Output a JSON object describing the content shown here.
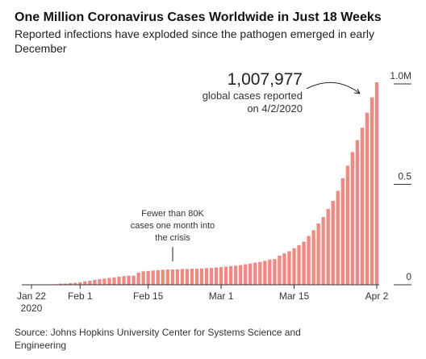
{
  "chart_data": {
    "type": "bar",
    "title": "One Million Coronavirus Cases Worldwide in Just 18 Weeks",
    "subtitle": [
      "Reported infections have exploded since the pathogen emerged in early",
      "December"
    ],
    "categories": [
      "Jan 22",
      null,
      null,
      null,
      null,
      null,
      null,
      null,
      null,
      null,
      "Feb 1",
      null,
      null,
      null,
      null,
      null,
      null,
      null,
      null,
      null,
      null,
      null,
      null,
      null,
      "Feb 15",
      null,
      null,
      null,
      null,
      null,
      null,
      null,
      null,
      null,
      null,
      null,
      null,
      null,
      null,
      "Mar 1",
      null,
      null,
      null,
      null,
      null,
      null,
      null,
      null,
      null,
      null,
      null,
      null,
      null,
      null,
      "Mar 15",
      null,
      null,
      null,
      null,
      null,
      null,
      null,
      null,
      null,
      null,
      null,
      null,
      null,
      null,
      null,
      null,
      "Apr 2"
    ],
    "year_label": "2020",
    "values": [
      0.001,
      0.001,
      0.001,
      0.001,
      0.002,
      0.003,
      0.006,
      0.006,
      0.008,
      0.01,
      0.012,
      0.017,
      0.02,
      0.024,
      0.028,
      0.031,
      0.034,
      0.037,
      0.04,
      0.043,
      0.045,
      0.045,
      0.06,
      0.067,
      0.069,
      0.071,
      0.073,
      0.075,
      0.076,
      0.076,
      0.077,
      0.079,
      0.079,
      0.08,
      0.08,
      0.081,
      0.083,
      0.084,
      0.086,
      0.088,
      0.09,
      0.093,
      0.095,
      0.098,
      0.102,
      0.106,
      0.11,
      0.114,
      0.119,
      0.126,
      0.128,
      0.145,
      0.156,
      0.167,
      0.182,
      0.197,
      0.215,
      0.243,
      0.272,
      0.305,
      0.337,
      0.378,
      0.418,
      0.468,
      0.53,
      0.593,
      0.661,
      0.72,
      0.782,
      0.857,
      0.933,
      1.008
    ],
    "color": "#ee8a84",
    "ylim": [
      0,
      1
    ],
    "yticks": [
      0,
      0.5,
      {
        "value": 1,
        "label": "1.0M"
      }
    ],
    "annotations": [
      {
        "text": [
          "1,007,977",
          "global cases reported",
          "on 4/2/2020"
        ]
      },
      {
        "text": [
          "Fewer than 80K",
          "cases one month into",
          "the crisis"
        ]
      }
    ],
    "source": [
      "Source: Johns Hopkins University Center for Systems Science and",
      "Engineering"
    ]
  }
}
